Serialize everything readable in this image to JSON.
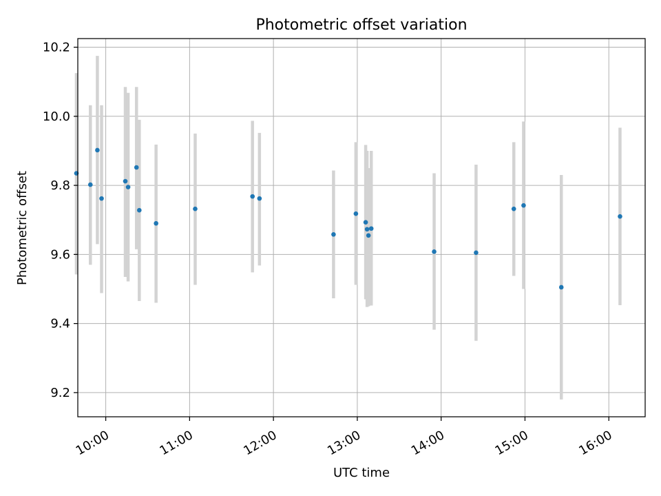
{
  "chart_data": {
    "type": "scatter",
    "title": "Photometric offset variation",
    "xlabel": "UTC time",
    "ylabel": "Photometric offset",
    "x_unit": "hours UTC",
    "xlim": [
      "09:40",
      "16:26"
    ],
    "ylim": [
      9.13,
      10.225
    ],
    "x_ticks": [
      "10:00",
      "11:00",
      "12:00",
      "13:00",
      "14:00",
      "15:00",
      "16:00"
    ],
    "y_ticks": [
      "9.2",
      "9.4",
      "9.6",
      "9.8",
      "10.0",
      "10.2"
    ],
    "grid": true,
    "legend": "none",
    "marker_color": "#1f77b4",
    "errorbar_color": "#d3d3d3",
    "points": [
      {
        "time": "09:39",
        "y": 9.835,
        "low": 9.542,
        "high": 10.125
      },
      {
        "time": "09:49",
        "y": 9.802,
        "low": 9.57,
        "high": 10.032
      },
      {
        "time": "09:54",
        "y": 9.902,
        "low": 9.63,
        "high": 10.175
      },
      {
        "time": "09:57",
        "y": 9.762,
        "low": 9.488,
        "high": 10.032
      },
      {
        "time": "10:14",
        "y": 9.812,
        "low": 9.535,
        "high": 10.085
      },
      {
        "time": "10:16",
        "y": 9.795,
        "low": 9.522,
        "high": 10.068
      },
      {
        "time": "10:22",
        "y": 9.852,
        "low": 9.615,
        "high": 10.085
      },
      {
        "time": "10:24",
        "y": 9.728,
        "low": 9.465,
        "high": 9.99
      },
      {
        "time": "10:36",
        "y": 9.69,
        "low": 9.46,
        "high": 9.918
      },
      {
        "time": "11:04",
        "y": 9.732,
        "low": 9.512,
        "high": 9.95
      },
      {
        "time": "11:45",
        "y": 9.768,
        "low": 9.548,
        "high": 9.987
      },
      {
        "time": "11:50",
        "y": 9.762,
        "low": 9.568,
        "high": 9.952
      },
      {
        "time": "12:43",
        "y": 9.658,
        "low": 9.473,
        "high": 9.843
      },
      {
        "time": "12:59",
        "y": 9.718,
        "low": 9.512,
        "high": 9.925
      },
      {
        "time": "13:06",
        "y": 9.693,
        "low": 9.47,
        "high": 9.917
      },
      {
        "time": "13:07",
        "y": 9.673,
        "low": 9.448,
        "high": 9.9
      },
      {
        "time": "13:08",
        "y": 9.655,
        "low": 9.45,
        "high": 9.85
      },
      {
        "time": "13:10",
        "y": 9.675,
        "low": 9.452,
        "high": 9.9
      },
      {
        "time": "13:55",
        "y": 9.608,
        "low": 9.382,
        "high": 9.835
      },
      {
        "time": "14:25",
        "y": 9.605,
        "low": 9.35,
        "high": 9.86
      },
      {
        "time": "14:52",
        "y": 9.732,
        "low": 9.538,
        "high": 9.925
      },
      {
        "time": "14:59",
        "y": 9.742,
        "low": 9.5,
        "high": 9.985
      },
      {
        "time": "15:26",
        "y": 9.505,
        "low": 9.18,
        "high": 9.83
      },
      {
        "time": "16:08",
        "y": 9.71,
        "low": 9.453,
        "high": 9.967
      }
    ]
  }
}
